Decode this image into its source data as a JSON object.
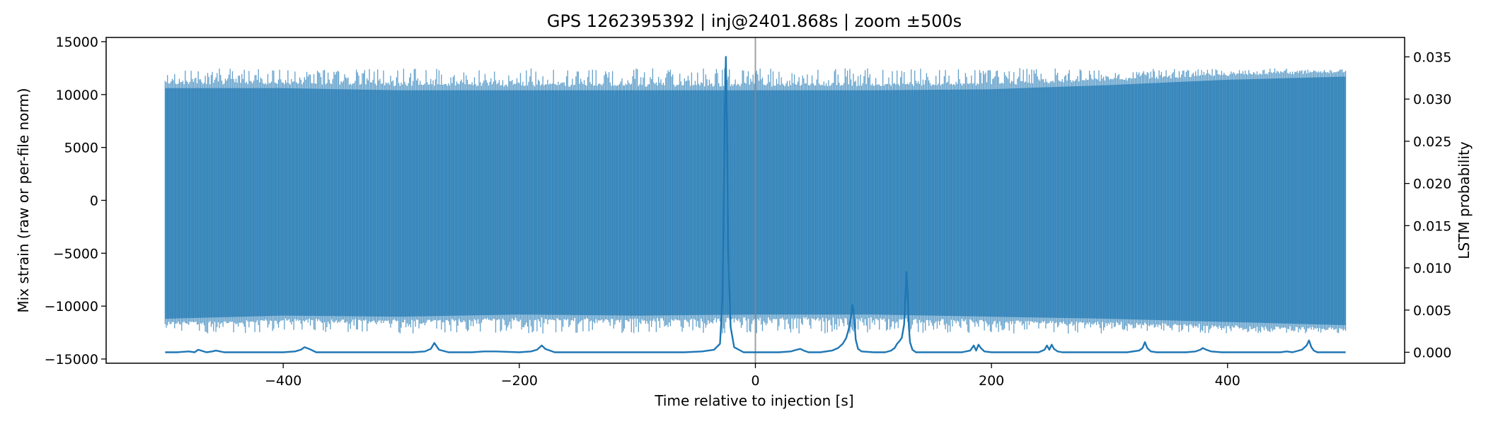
{
  "chart_data": {
    "type": "line",
    "title": "GPS 1262395392 | inj@2401.868s | zoom ±500s",
    "xlabel": "Time relative to injection [s]",
    "ylabel": "Mix strain (raw or per-file norm)",
    "y2label": "LSTM probability",
    "xlim": [
      -550,
      550
    ],
    "ylim": [
      -15400,
      15400
    ],
    "y2lim": [
      -0.0013,
      0.0373
    ],
    "x_ticks": [
      -400,
      -200,
      0,
      200,
      400
    ],
    "x_tick_labels": [
      "−400",
      "−200",
      "0",
      "200",
      "400"
    ],
    "y_ticks": [
      -15000,
      -10000,
      -5000,
      0,
      5000,
      10000,
      15000
    ],
    "y_tick_labels": [
      "−15000",
      "−10000",
      "−5000",
      "0",
      "5000",
      "10000",
      "15000"
    ],
    "y2_ticks": [
      0.0,
      0.005,
      0.01,
      0.015,
      0.02,
      0.025,
      0.03,
      0.035
    ],
    "y2_tick_labels": [
      "0.000",
      "0.005",
      "0.010",
      "0.015",
      "0.020",
      "0.025",
      "0.030",
      "0.035"
    ],
    "grid": false,
    "legend": "none",
    "injection_marker_x": 0,
    "series": [
      {
        "axis": "left",
        "style": "dense-oscillation",
        "color": "#1f77b4",
        "opacity": 0.7,
        "x_range": [
          -500,
          500
        ],
        "envelope_upper": [
          [
            -500,
            11200
          ],
          [
            -400,
            11200
          ],
          [
            -300,
            11000
          ],
          [
            -200,
            11000
          ],
          [
            -100,
            11000
          ],
          [
            0,
            11000
          ],
          [
            100,
            11000
          ],
          [
            200,
            11100
          ],
          [
            300,
            11500
          ],
          [
            400,
            12000
          ],
          [
            500,
            12300
          ]
        ],
        "envelope_lower": [
          [
            -500,
            -11700
          ],
          [
            -400,
            -11400
          ],
          [
            -300,
            -11500
          ],
          [
            -200,
            -11300
          ],
          [
            -100,
            -11400
          ],
          [
            0,
            -11300
          ],
          [
            100,
            -11300
          ],
          [
            200,
            -11500
          ],
          [
            300,
            -11700
          ],
          [
            400,
            -12000
          ],
          [
            500,
            -12300
          ]
        ],
        "peak_upper": 12500,
        "peak_lower": -12600
      },
      {
        "axis": "right",
        "color": "#1f77b4",
        "baseline": 0.0,
        "x": [
          -500,
          -490,
          -480,
          -475,
          -472,
          -465,
          -460,
          -457,
          -450,
          -440,
          -420,
          -400,
          -390,
          -385,
          -382,
          -378,
          -372,
          -360,
          -340,
          -320,
          -300,
          -290,
          -280,
          -275,
          -272,
          -268,
          -260,
          -250,
          -240,
          -230,
          -220,
          -200,
          -190,
          -185,
          -181,
          -178,
          -170,
          -150,
          -120,
          -90,
          -60,
          -45,
          -35,
          -30,
          -28,
          -27,
          -26,
          -25,
          -24,
          -23,
          -21,
          -18,
          -10,
          0,
          10,
          20,
          30,
          35,
          38,
          41,
          45,
          55,
          65,
          70,
          74,
          77,
          79,
          81,
          82,
          83,
          84,
          85,
          87,
          90,
          100,
          110,
          115,
          118,
          120,
          122,
          124,
          126,
          127,
          128,
          129,
          130,
          131,
          133,
          136,
          145,
          160,
          175,
          182,
          185,
          187,
          189,
          191,
          194,
          200,
          215,
          230,
          240,
          245,
          247,
          249,
          251,
          253,
          256,
          260,
          270,
          285,
          300,
          315,
          325,
          328,
          330,
          332,
          335,
          340,
          355,
          365,
          373,
          377,
          379,
          382,
          386,
          395,
          410,
          430,
          445,
          450,
          455,
          463,
          467,
          469,
          471,
          473,
          476,
          480,
          490,
          500
        ],
        "y": [
          0.0,
          0.0,
          0.0001,
          0.0,
          0.0003,
          0.0,
          0.0001,
          0.0002,
          0.0,
          0.0,
          0.0,
          0.0,
          0.0001,
          0.0003,
          0.0006,
          0.0004,
          0.0,
          0.0,
          0.0,
          0.0,
          0.0,
          0.0,
          0.0001,
          0.0004,
          0.0011,
          0.0003,
          0.0,
          0.0,
          0.0,
          0.0001,
          0.0001,
          0.0,
          0.0001,
          0.0003,
          0.0008,
          0.0004,
          0.0,
          0.0,
          0.0,
          0.0,
          0.0,
          0.0001,
          0.0003,
          0.001,
          0.006,
          0.015,
          0.028,
          0.035,
          0.026,
          0.012,
          0.003,
          0.0006,
          0.0,
          0.0,
          0.0,
          0.0,
          0.0001,
          0.0003,
          0.0004,
          0.0002,
          0.0,
          0.0,
          0.0002,
          0.0005,
          0.001,
          0.0017,
          0.0027,
          0.0042,
          0.0056,
          0.005,
          0.0035,
          0.0015,
          0.0004,
          0.0001,
          0.0,
          0.0,
          0.0002,
          0.0005,
          0.001,
          0.0013,
          0.0017,
          0.0033,
          0.0065,
          0.0095,
          0.007,
          0.003,
          0.0012,
          0.0003,
          0.0,
          0.0,
          0.0,
          0.0,
          0.0002,
          0.0008,
          0.0002,
          0.0009,
          0.0005,
          0.0001,
          0.0,
          0.0,
          0.0,
          0.0,
          0.0003,
          0.0008,
          0.0003,
          0.0009,
          0.0004,
          0.0001,
          0.0,
          0.0,
          0.0,
          0.0,
          0.0,
          0.0002,
          0.0005,
          0.0012,
          0.0005,
          0.0001,
          0.0,
          0.0,
          0.0,
          0.0001,
          0.0003,
          0.0005,
          0.0003,
          0.0001,
          0.0,
          0.0,
          0.0,
          0.0,
          0.0001,
          0.0,
          0.0003,
          0.0008,
          0.0014,
          0.0006,
          0.0002,
          0.0,
          0.0,
          0.0,
          0.0
        ]
      }
    ]
  }
}
